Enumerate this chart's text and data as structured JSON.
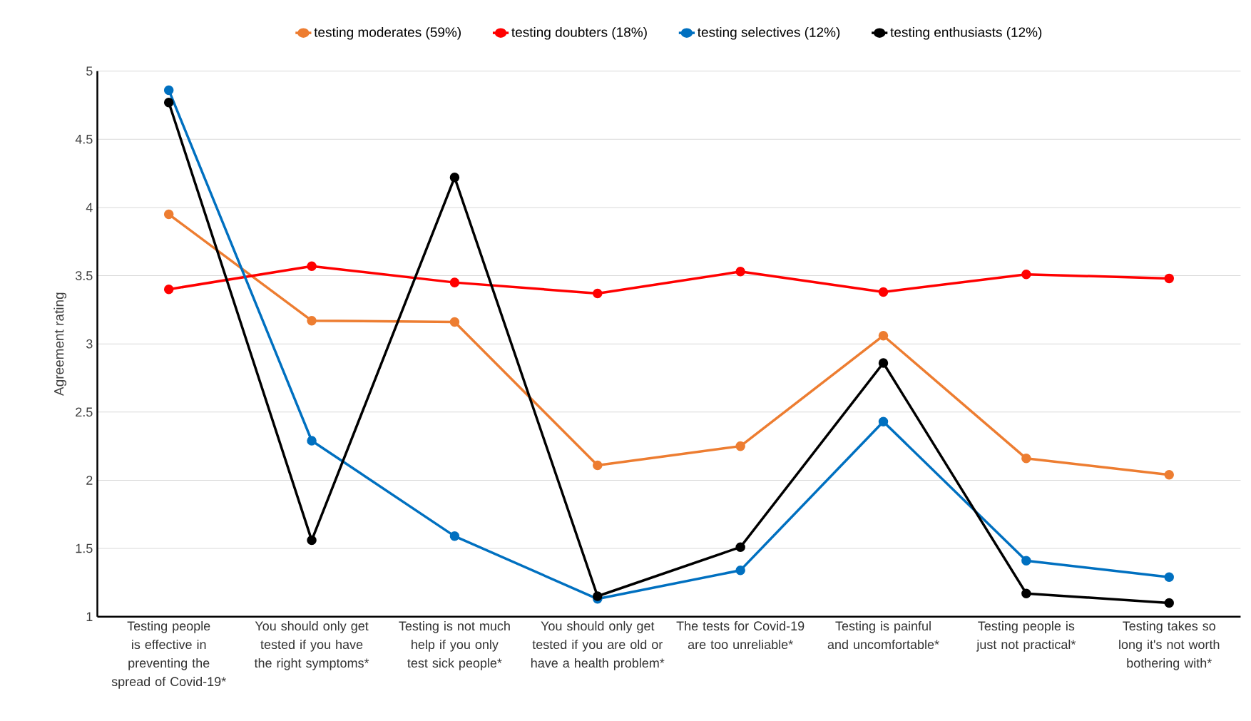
{
  "chart_data": {
    "type": "line",
    "ylabel": "Agreement rating",
    "categories": [
      "Testing people is effective in preventing the spread of Covid-19*",
      "You should only get tested if you have the right symptoms*",
      "Testing is not much help if you only test sick people*",
      "You should only get tested if you are old or have a health problem*",
      "The tests for Covid-19 are too unreliable*",
      "Testing is painful and uncomfortable*",
      "Testing people is just not practical*",
      "Testing takes so long it's not worth bothering with*"
    ],
    "series": [
      {
        "name": "testing moderates (59%)",
        "color": "#ed7d31",
        "values": [
          3.95,
          3.17,
          3.16,
          2.11,
          2.25,
          3.06,
          2.16,
          2.04
        ]
      },
      {
        "name": "testing doubters (18%)",
        "color": "#ff0000",
        "values": [
          3.4,
          3.57,
          3.45,
          3.37,
          3.53,
          3.38,
          3.51,
          3.48
        ]
      },
      {
        "name": "testing selectives (12%)",
        "color": "#0070c0",
        "values": [
          4.86,
          2.29,
          1.59,
          1.13,
          1.34,
          2.43,
          1.41,
          1.29
        ]
      },
      {
        "name": "testing enthusiasts (12%)",
        "color": "#000000",
        "values": [
          4.77,
          1.56,
          4.22,
          1.15,
          1.51,
          2.86,
          1.17,
          1.1
        ]
      }
    ],
    "ylim": [
      1,
      5
    ],
    "yticks": [
      1,
      1.5,
      2,
      2.5,
      3,
      3.5,
      4,
      4.5,
      5
    ],
    "grid": "y",
    "legend": "top",
    "marker": "circle",
    "line_style": "solid"
  }
}
